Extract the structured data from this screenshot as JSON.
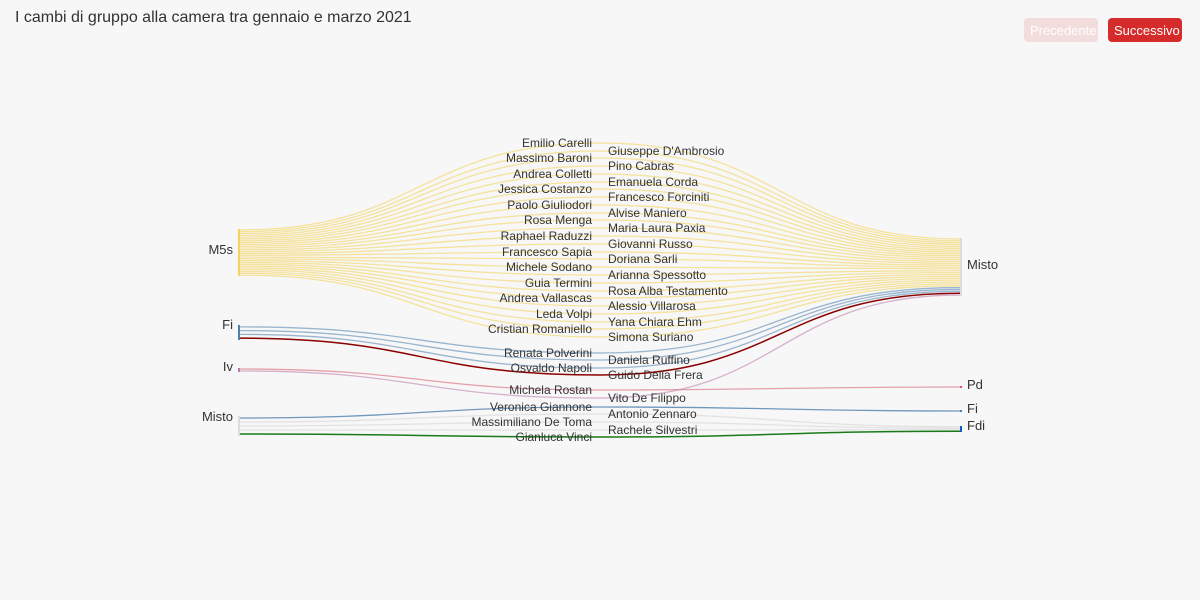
{
  "title": "I cambi di gruppo alla camera tra gennaio e marzo 2021",
  "nav": {
    "prev_label": "Precedente",
    "next_label": "Successivo"
  },
  "colors": {
    "M5s": "#f4d35e",
    "Fi": "#4d7fae",
    "Iv": "#b97aa8",
    "Misto": "#dcdcdc",
    "Pd": "#d6596b",
    "Fdi": "#1259c3",
    "link_fdi": "#1a7a1a",
    "link_pd": "#8b0000",
    "btn_active": "#d62b2b"
  },
  "chart_data": {
    "type": "sankey",
    "title": "I cambi di gruppo alla camera tra gennaio e marzo 2021",
    "source_groups": [
      "M5s",
      "Fi",
      "Iv",
      "Misto"
    ],
    "target_groups": [
      "Misto",
      "Pd",
      "Fi",
      "Fdi"
    ],
    "links": [
      {
        "name": "Emilio Carelli",
        "from": "M5s",
        "to": "Misto"
      },
      {
        "name": "Giuseppe D'Ambrosio",
        "from": "M5s",
        "to": "Misto"
      },
      {
        "name": "Massimo Baroni",
        "from": "M5s",
        "to": "Misto"
      },
      {
        "name": "Pino Cabras",
        "from": "M5s",
        "to": "Misto"
      },
      {
        "name": "Andrea Colletti",
        "from": "M5s",
        "to": "Misto"
      },
      {
        "name": "Emanuela Corda",
        "from": "M5s",
        "to": "Misto"
      },
      {
        "name": "Jessica Costanzo",
        "from": "M5s",
        "to": "Misto"
      },
      {
        "name": "Francesco Forciniti",
        "from": "M5s",
        "to": "Misto"
      },
      {
        "name": "Paolo Giuliodori",
        "from": "M5s",
        "to": "Misto"
      },
      {
        "name": "Alvise Maniero",
        "from": "M5s",
        "to": "Misto"
      },
      {
        "name": "Rosa Menga",
        "from": "M5s",
        "to": "Misto"
      },
      {
        "name": "Maria Laura Paxia",
        "from": "M5s",
        "to": "Misto"
      },
      {
        "name": "Raphael Raduzzi",
        "from": "M5s",
        "to": "Misto"
      },
      {
        "name": "Giovanni Russo",
        "from": "M5s",
        "to": "Misto"
      },
      {
        "name": "Francesco Sapia",
        "from": "M5s",
        "to": "Misto"
      },
      {
        "name": "Doriana Sarli",
        "from": "M5s",
        "to": "Misto"
      },
      {
        "name": "Michele Sodano",
        "from": "M5s",
        "to": "Misto"
      },
      {
        "name": "Arianna Spessotto",
        "from": "M5s",
        "to": "Misto"
      },
      {
        "name": "Guia Termini",
        "from": "M5s",
        "to": "Misto"
      },
      {
        "name": "Rosa Alba Testamento",
        "from": "M5s",
        "to": "Misto"
      },
      {
        "name": "Andrea Vallascas",
        "from": "M5s",
        "to": "Misto"
      },
      {
        "name": "Alessio Villarosa",
        "from": "M5s",
        "to": "Misto"
      },
      {
        "name": "Leda Volpi",
        "from": "M5s",
        "to": "Misto"
      },
      {
        "name": "Yana Chiara Ehm",
        "from": "M5s",
        "to": "Misto"
      },
      {
        "name": "Cristian Romaniello",
        "from": "M5s",
        "to": "Misto"
      },
      {
        "name": "Simona Suriano",
        "from": "M5s",
        "to": "Misto"
      },
      {
        "name": "Renata Polverini",
        "from": "Fi",
        "to": "Misto"
      },
      {
        "name": "Daniela Ruffino",
        "from": "Fi",
        "to": "Misto"
      },
      {
        "name": "Osvaldo Napoli",
        "from": "Fi",
        "to": "Misto"
      },
      {
        "name": "Guido Della Frera",
        "from": "Fi",
        "to": "Misto"
      },
      {
        "name": "Michela Rostan",
        "from": "Iv",
        "to": "Pd"
      },
      {
        "name": "Vito De Filippo",
        "from": "Iv",
        "to": "Misto"
      },
      {
        "name": "Veronica Giannone",
        "from": "Misto",
        "to": "Fi"
      },
      {
        "name": "Antonio Zennaro",
        "from": "Misto",
        "to": "Fdi"
      },
      {
        "name": "Massimiliano De Toma",
        "from": "Misto",
        "to": "Fdi"
      },
      {
        "name": "Rachele Silvestri",
        "from": "Misto",
        "to": "Fdi"
      },
      {
        "name": "Gianluca Vinci",
        "from": "Misto",
        "to": "Fdi"
      }
    ],
    "left_names": [
      "Emilio Carelli",
      "Massimo Baroni",
      "Andrea Colletti",
      "Jessica Costanzo",
      "Paolo Giuliodori",
      "Rosa Menga",
      "Raphael Raduzzi",
      "Francesco Sapia",
      "Michele Sodano",
      "Guia Termini",
      "Andrea Vallascas",
      "Leda Volpi",
      "Cristian Romaniello",
      "Renata Polverini",
      "Osvaldo Napoli",
      "Michela Rostan",
      "Veronica Giannone",
      "Massimiliano De Toma",
      "Gianluca Vinci"
    ],
    "right_names": [
      "Giuseppe D'Ambrosio",
      "Pino Cabras",
      "Emanuela Corda",
      "Francesco Forciniti",
      "Alvise Maniero",
      "Maria Laura Paxia",
      "Giovanni Russo",
      "Doriana Sarli",
      "Arianna Spessotto",
      "Rosa Alba Testamento",
      "Alessio Villarosa",
      "Yana Chiara Ehm",
      "Simona Suriano",
      "Daniela Ruffino",
      "Guido Della Frera",
      "Vito De Filippo",
      "Antonio Zennaro",
      "Rachele Silvestri"
    ]
  }
}
